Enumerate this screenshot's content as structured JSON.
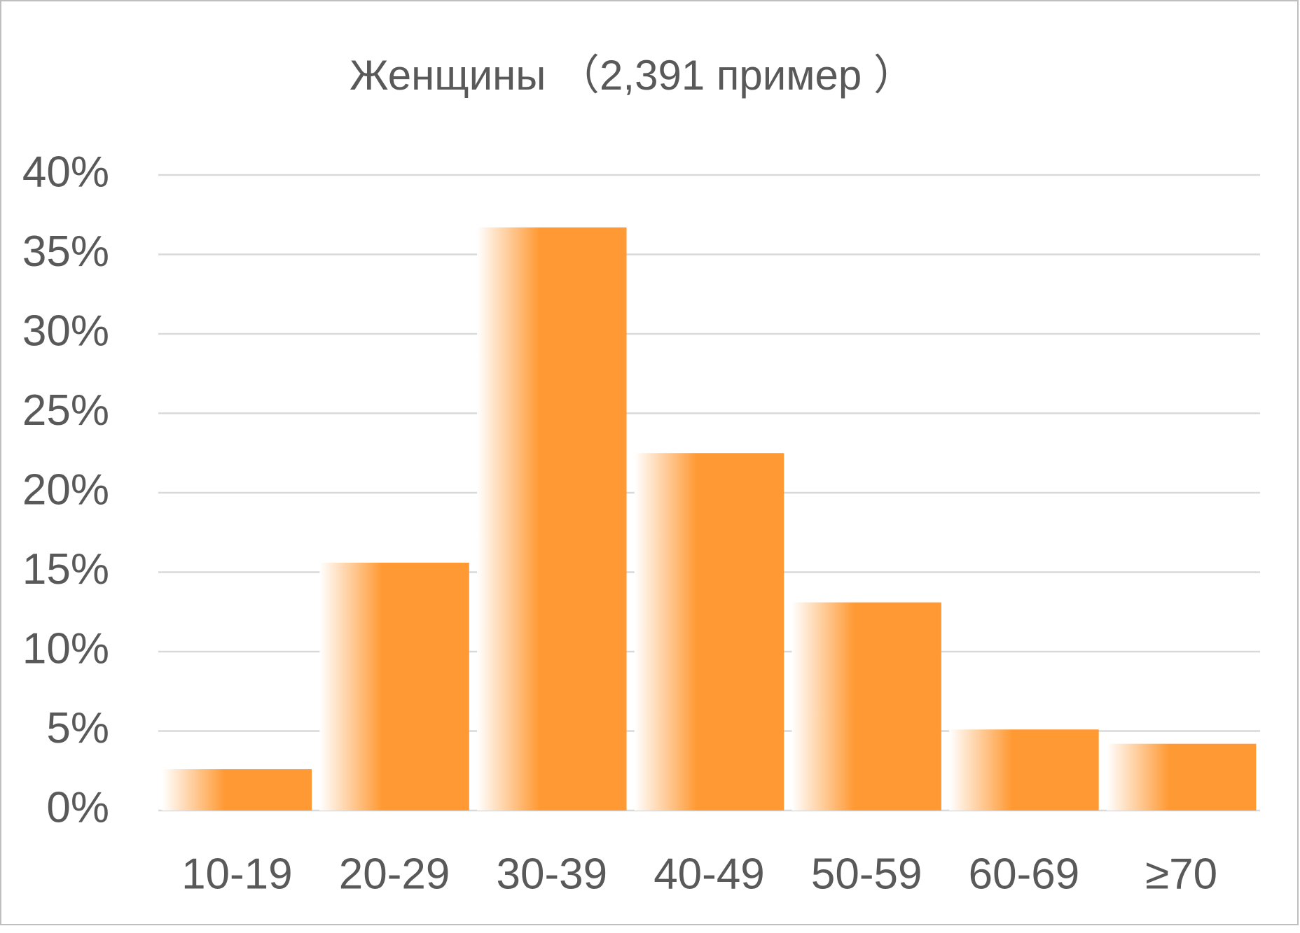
{
  "chart_data": {
    "type": "bar",
    "title": "Женщины （2,391 пример ）",
    "categories": [
      "10-19",
      "20-29",
      "30-39",
      "40-49",
      "50-59",
      "60-69",
      "≥70"
    ],
    "values": [
      2.6,
      15.6,
      36.7,
      22.5,
      13.1,
      5.1,
      4.2
    ],
    "color": "#ff9933",
    "ylim": [
      0,
      40
    ],
    "yticks": [
      {
        "value": 0,
        "label": "0%"
      },
      {
        "value": 5,
        "label": "5%"
      },
      {
        "value": 10,
        "label": "10%"
      },
      {
        "value": 15,
        "label": "15%"
      },
      {
        "value": 20,
        "label": "20%"
      },
      {
        "value": 25,
        "label": "25%"
      },
      {
        "value": 30,
        "label": "30%"
      },
      {
        "value": 35,
        "label": "35%"
      },
      {
        "value": 40,
        "label": "40%"
      }
    ],
    "grid": true
  }
}
